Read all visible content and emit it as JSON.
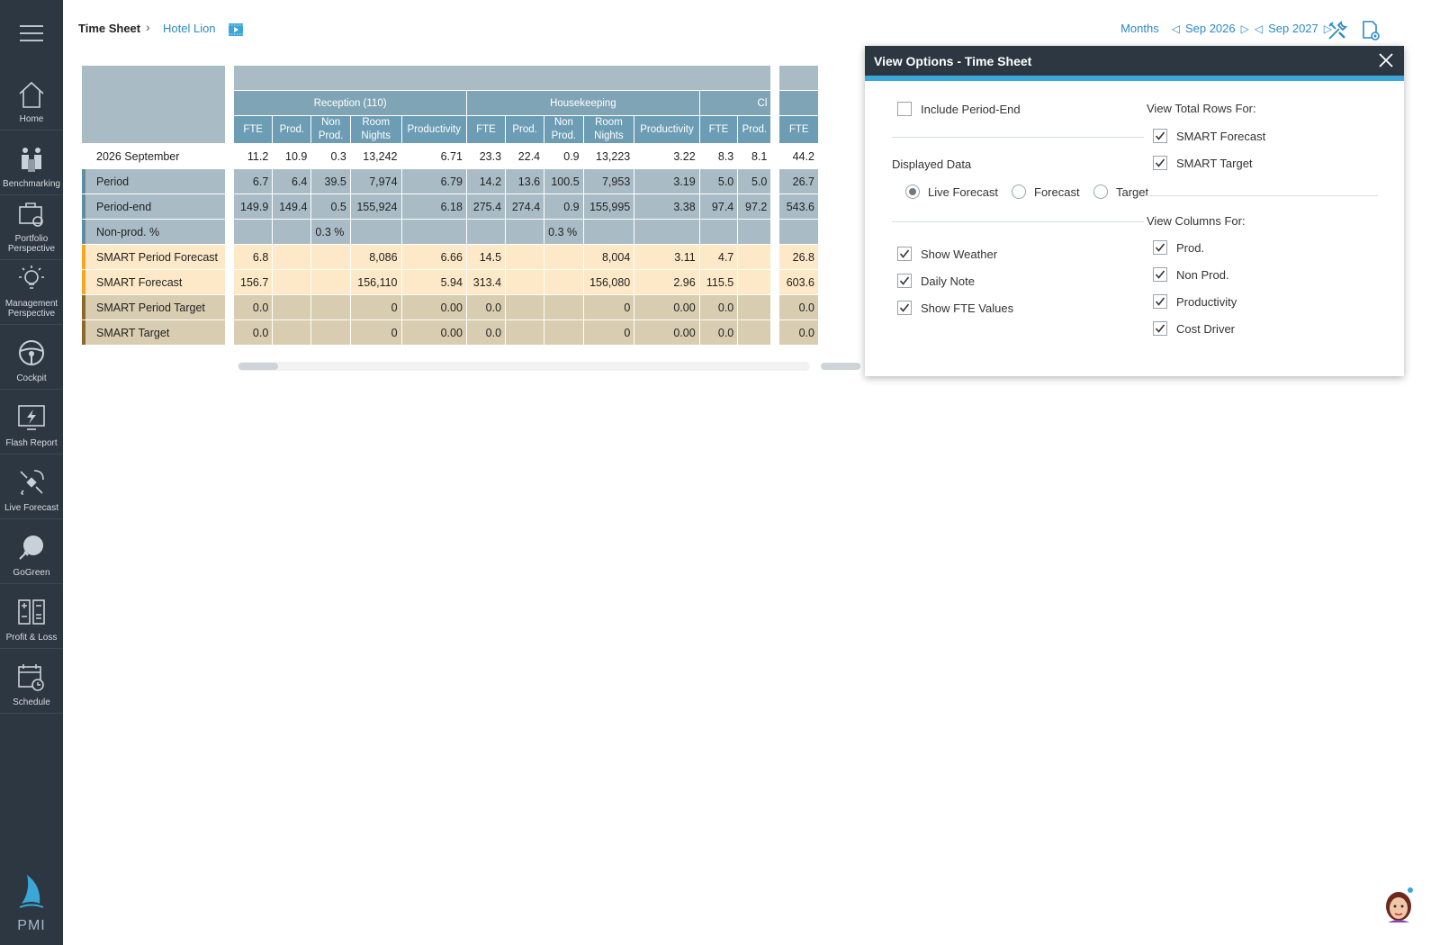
{
  "sidebar": {
    "items": [
      {
        "label": "Home",
        "icon": "home-icon"
      },
      {
        "label": "Benchmarking",
        "icon": "people-icon"
      },
      {
        "label": "Portfolio Perspective",
        "icon": "portfolio-icon"
      },
      {
        "label": "Management Perspective",
        "icon": "lightbulb-icon"
      },
      {
        "label": "Cockpit",
        "icon": "steering-wheel-icon"
      },
      {
        "label": "Flash Report",
        "icon": "flash-monitor-icon"
      },
      {
        "label": "Live Forecast",
        "icon": "satellite-icon"
      },
      {
        "label": "GoGreen",
        "icon": "leaf-plug-icon"
      },
      {
        "label": "Profit & Loss",
        "icon": "calculator-icon"
      },
      {
        "label": "Schedule",
        "icon": "calendar-clock-icon"
      }
    ],
    "logo_text": "PMI"
  },
  "header": {
    "title": "Time Sheet",
    "hotel": "Hotel Lion",
    "period_unit": "Months",
    "period_start": "Sep 2026",
    "period_end": "Sep 2027"
  },
  "table": {
    "groups": [
      "Reception (110)",
      "Housekeeping",
      "Cl"
    ],
    "columns": [
      "FTE",
      "Prod.",
      "Non Prod.",
      "Room Nights",
      "Productivity",
      "FTE",
      "Prod.",
      "Non Prod.",
      "Room Nights",
      "Productivity",
      "FTE",
      "Prod.",
      "FTE"
    ],
    "rows": [
      {
        "label": "2026 September",
        "cells": [
          "11.2",
          "10.9",
          "0.3",
          "13,242",
          "6.71",
          "23.3",
          "22.4",
          "0.9",
          "13,223",
          "3.22",
          "8.3",
          "8.1",
          "44.2"
        ]
      },
      {
        "label": "Period",
        "cells": [
          "6.7",
          "6.4",
          "39.5",
          "7,974",
          "6.79",
          "14.2",
          "13.6",
          "100.5",
          "7,953",
          "3.19",
          "5.0",
          "5.0",
          "26.7"
        ]
      },
      {
        "label": "Period-end",
        "cells": [
          "149.9",
          "149.4",
          "0.5",
          "155,924",
          "6.18",
          "275.4",
          "274.4",
          "0.9",
          "155,995",
          "3.38",
          "97.4",
          "97.2",
          "543.6"
        ]
      },
      {
        "label": "Non-prod. %",
        "cells": [
          "",
          "",
          "0.3 %",
          "",
          "",
          "",
          "",
          "0.3 %",
          "",
          "",
          "",
          "",
          ""
        ]
      },
      {
        "label": "SMART Period Forecast",
        "cells": [
          "6.8",
          "",
          "",
          "8,086",
          "6.66",
          "14.5",
          "",
          "",
          "8,004",
          "3.11",
          "4.7",
          "",
          "26.8"
        ]
      },
      {
        "label": "SMART Forecast",
        "cells": [
          "156.7",
          "",
          "",
          "156,110",
          "5.94",
          "313.4",
          "",
          "",
          "156,080",
          "2.96",
          "115.5",
          "",
          "603.6"
        ]
      },
      {
        "label": "SMART Period Target",
        "cells": [
          "0.0",
          "",
          "",
          "0",
          "0.00",
          "0.0",
          "",
          "",
          "0",
          "0.00",
          "0.0",
          "",
          "0.0"
        ]
      },
      {
        "label": "SMART Target",
        "cells": [
          "0.0",
          "",
          "",
          "0",
          "0.00",
          "0.0",
          "",
          "",
          "0",
          "0.00",
          "0.0",
          "",
          "0.0"
        ]
      }
    ],
    "accent_colors": {
      "period": "#5f8ea3",
      "forecast": "#f5a623",
      "target": "#8a6a2a"
    }
  },
  "dialog": {
    "title": "View Options - Time Sheet",
    "include_period_end": {
      "label": "Include Period-End",
      "checked": false
    },
    "displayed_data_label": "Displayed Data",
    "displayed_data_options": [
      {
        "label": "Live Forecast",
        "selected": true
      },
      {
        "label": "Forecast",
        "selected": false
      },
      {
        "label": "Target",
        "selected": false
      }
    ],
    "left_checks": [
      {
        "label": "Show Weather",
        "checked": true
      },
      {
        "label": "Daily Note",
        "checked": true
      },
      {
        "label": "Show FTE Values",
        "checked": true
      }
    ],
    "view_total_rows_label": "View Total Rows For:",
    "total_rows": [
      {
        "label": "SMART Forecast",
        "checked": true
      },
      {
        "label": "SMART Target",
        "checked": true
      }
    ],
    "view_columns_label": "View Columns For:",
    "columns": [
      {
        "label": "Prod.",
        "checked": true
      },
      {
        "label": "Non Prod.",
        "checked": true
      },
      {
        "label": "Productivity",
        "checked": true
      },
      {
        "label": "Cost Driver",
        "checked": true
      }
    ]
  }
}
